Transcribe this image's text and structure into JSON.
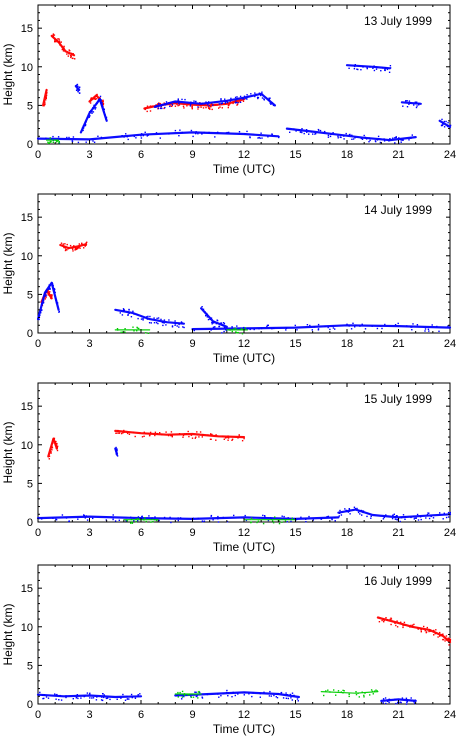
{
  "chart_data": [
    {
      "type": "scatter",
      "title": "13 July 1999",
      "xlabel": "Time (UTC)",
      "ylabel": "Height (km)",
      "xlim": [
        0,
        24
      ],
      "ylim": [
        0,
        18
      ],
      "xticks": [
        0,
        3,
        6,
        9,
        12,
        15,
        18,
        21,
        24
      ],
      "yticks": [
        0,
        5,
        10,
        15
      ],
      "grid": false,
      "series": [
        {
          "color": "#ff0000",
          "segments": [
            {
              "x": [
                0.3,
                0.5
              ],
              "y": [
                5.0,
                7.0
              ]
            },
            {
              "x": [
                0.8,
                1.2,
                1.6,
                2.1
              ],
              "y": [
                14.0,
                13.2,
                12.0,
                11.5
              ]
            },
            {
              "x": [
                3.0,
                3.4,
                3.8
              ],
              "y": [
                5.5,
                6.3,
                5.2
              ]
            },
            {
              "x": [
                6.2,
                7.0,
                8.0,
                9.0,
                10.0,
                11.0,
                12.0
              ],
              "y": [
                4.6,
                5.0,
                5.3,
                5.1,
                5.0,
                5.2,
                5.8
              ]
            }
          ]
        },
        {
          "color": "#0000ff",
          "segments": [
            {
              "x": [
                2.2,
                2.4
              ],
              "y": [
                7.5,
                7.0
              ]
            },
            {
              "x": [
                2.5,
                3.0,
                3.6,
                4.0
              ],
              "y": [
                1.5,
                4.0,
                5.8,
                3.0
              ]
            },
            {
              "x": [
                6.8,
                8.0,
                9.5,
                11.0,
                12.0,
                13.0,
                13.8
              ],
              "y": [
                4.8,
                5.5,
                5.2,
                5.6,
                6.0,
                6.5,
                5.0
              ]
            },
            {
              "x": [
                0.0,
                3.0,
                6.0,
                9.0,
                12.0,
                14.0
              ],
              "y": [
                0.7,
                0.6,
                1.2,
                1.5,
                1.3,
                1.0
              ]
            },
            {
              "x": [
                14.5,
                16.0,
                17.5,
                19.0,
                20.5,
                22.0
              ],
              "y": [
                2.0,
                1.6,
                1.2,
                0.8,
                0.5,
                0.9
              ]
            },
            {
              "x": [
                18.0,
                19.5,
                20.5
              ],
              "y": [
                10.2,
                10.0,
                9.8
              ]
            },
            {
              "x": [
                21.2,
                22.3
              ],
              "y": [
                5.4,
                5.2
              ]
            },
            {
              "x": [
                23.4,
                24.0
              ],
              "y": [
                3.0,
                2.2
              ]
            }
          ]
        },
        {
          "color": "#00cc00",
          "segments": [
            {
              "x": [
                0.5,
                1.2
              ],
              "y": [
                0.5,
                0.5
              ]
            }
          ]
        }
      ]
    },
    {
      "type": "scatter",
      "title": "14 July 1999",
      "xlabel": "Time (UTC)",
      "ylabel": "Height (km)",
      "xlim": [
        0,
        24
      ],
      "ylim": [
        0,
        18
      ],
      "xticks": [
        0,
        3,
        6,
        9,
        12,
        15,
        18,
        21,
        24
      ],
      "yticks": [
        0,
        5,
        10,
        15
      ],
      "grid": false,
      "series": [
        {
          "color": "#ff0000",
          "segments": [
            {
              "x": [
                0.2,
                0.5,
                0.8
              ],
              "y": [
                4.0,
                5.5,
                4.5
              ]
            },
            {
              "x": [
                1.3,
                1.8,
                2.3,
                2.8
              ],
              "y": [
                11.4,
                11.0,
                11.2,
                11.5
              ]
            }
          ]
        },
        {
          "color": "#0000ff",
          "segments": [
            {
              "x": [
                0.0,
                0.4,
                0.8,
                1.2
              ],
              "y": [
                1.8,
                5.2,
                6.5,
                3.0
              ]
            },
            {
              "x": [
                4.5,
                5.5,
                6.5,
                7.5,
                8.5
              ],
              "y": [
                3.0,
                2.6,
                1.8,
                1.4,
                1.2
              ]
            },
            {
              "x": [
                9.5,
                10.2,
                11.0
              ],
              "y": [
                3.2,
                1.5,
                0.8
              ]
            },
            {
              "x": [
                9.0,
                12.0,
                15.0,
                18.0,
                21.0,
                24.0
              ],
              "y": [
                0.5,
                0.6,
                0.7,
                1.0,
                0.9,
                0.7
              ]
            }
          ]
        },
        {
          "color": "#00cc00",
          "segments": [
            {
              "x": [
                4.5,
                6.5
              ],
              "y": [
                0.4,
                0.4
              ]
            },
            {
              "x": [
                11.0,
                12.2
              ],
              "y": [
                0.4,
                0.4
              ]
            }
          ]
        }
      ]
    },
    {
      "type": "scatter",
      "title": "15 July 1999",
      "xlabel": "Time (UTC)",
      "ylabel": "Height (km)",
      "xlim": [
        0,
        24
      ],
      "ylim": [
        0,
        18
      ],
      "xticks": [
        0,
        3,
        6,
        9,
        12,
        15,
        18,
        21,
        24
      ],
      "yticks": [
        0,
        5,
        10,
        15
      ],
      "grid": false,
      "series": [
        {
          "color": "#ff0000",
          "segments": [
            {
              "x": [
                0.6,
                0.9,
                1.1
              ],
              "y": [
                8.5,
                10.8,
                9.5
              ]
            },
            {
              "x": [
                4.5,
                6.0,
                7.5,
                9.0,
                10.5,
                12.0
              ],
              "y": [
                11.8,
                11.5,
                11.3,
                11.4,
                11.1,
                11.0
              ]
            }
          ]
        },
        {
          "color": "#0000ff",
          "segments": [
            {
              "x": [
                0.0,
                3.0,
                6.0,
                9.0,
                12.0,
                15.0,
                17.5
              ],
              "y": [
                0.5,
                0.7,
                0.5,
                0.4,
                0.6,
                0.4,
                0.6
              ]
            },
            {
              "x": [
                17.5,
                18.5,
                19.5,
                21.0,
                22.5,
                24.0
              ],
              "y": [
                1.2,
                1.6,
                0.9,
                0.6,
                0.8,
                1.0
              ]
            },
            {
              "x": [
                4.5,
                4.6
              ],
              "y": [
                9.5,
                8.8
              ]
            }
          ]
        },
        {
          "color": "#00cc00",
          "segments": [
            {
              "x": [
                5.0,
                7.0
              ],
              "y": [
                0.3,
                0.3
              ]
            },
            {
              "x": [
                12.0,
                15.0
              ],
              "y": [
                0.3,
                0.3
              ]
            }
          ]
        }
      ]
    },
    {
      "type": "scatter",
      "title": "16 July 1999",
      "xlabel": "Time (UTC)",
      "ylabel": "Height (km)",
      "xlim": [
        0,
        24
      ],
      "ylim": [
        0,
        18
      ],
      "xticks": [
        0,
        3,
        6,
        9,
        12,
        15,
        18,
        21,
        24
      ],
      "yticks": [
        0,
        5,
        10,
        15
      ],
      "grid": false,
      "series": [
        {
          "color": "#ff0000",
          "segments": [
            {
              "x": [
                19.8,
                20.8,
                21.8,
                22.8,
                23.6,
                24.0
              ],
              "y": [
                11.2,
                10.6,
                10.0,
                9.6,
                8.8,
                8.0
              ]
            }
          ]
        },
        {
          "color": "#0000ff",
          "segments": [
            {
              "x": [
                0.0,
                1.5,
                3.0,
                4.5,
                6.0
              ],
              "y": [
                1.2,
                1.0,
                1.1,
                0.9,
                1.0
              ]
            },
            {
              "x": [
                8.0,
                10.0,
                12.0,
                14.0,
                15.2
              ],
              "y": [
                1.1,
                1.3,
                1.5,
                1.3,
                0.9
              ]
            },
            {
              "x": [
                20.0,
                21.0,
                22.0
              ],
              "y": [
                0.4,
                0.6,
                0.4
              ]
            }
          ]
        },
        {
          "color": "#00cc00",
          "segments": [
            {
              "x": [
                8.0,
                9.5
              ],
              "y": [
                1.3,
                1.3
              ]
            },
            {
              "x": [
                16.5,
                18.5,
                19.8
              ],
              "y": [
                1.6,
                1.4,
                1.6
              ]
            }
          ]
        }
      ]
    }
  ]
}
